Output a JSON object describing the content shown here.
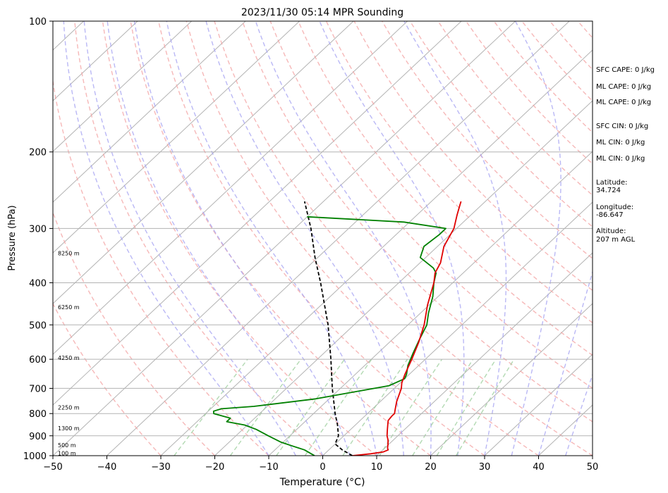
{
  "chart_data": {
    "type": "skew-t",
    "title": "2023/11/30 05:14 MPR Sounding",
    "xlabel": "Temperature (°C)",
    "ylabel": "Pressure (hPa)",
    "xlim": [
      -50,
      50
    ],
    "ylim": [
      1000,
      100
    ],
    "y_scale": "log",
    "x_ticks": [
      -50,
      -40,
      -30,
      -20,
      -10,
      0,
      10,
      20,
      30,
      40,
      50
    ],
    "y_ticks": [
      1000,
      900,
      800,
      700,
      600,
      500,
      400,
      300,
      200,
      100
    ],
    "grid": "horizontal",
    "temperature_color": "#e00000",
    "dewpoint_color": "#008000",
    "parcel_color": "#000000",
    "temperature": [
      [
        1000,
        5.5
      ],
      [
        990,
        8.5
      ],
      [
        980,
        10.5
      ],
      [
        970,
        11.0
      ],
      [
        960,
        10.5
      ],
      [
        940,
        9.8
      ],
      [
        920,
        9.0
      ],
      [
        900,
        8.0
      ],
      [
        870,
        6.8
      ],
      [
        850,
        6.0
      ],
      [
        830,
        5.2
      ],
      [
        810,
        5.0
      ],
      [
        800,
        5.0
      ],
      [
        780,
        4.2
      ],
      [
        750,
        3.0
      ],
      [
        700,
        1.3
      ],
      [
        680,
        0.3
      ],
      [
        650,
        -0.8
      ],
      [
        600,
        -2.5
      ],
      [
        550,
        -4.5
      ],
      [
        500,
        -7.0
      ],
      [
        450,
        -10.3
      ],
      [
        400,
        -13.5
      ],
      [
        380,
        -15.2
      ],
      [
        360,
        -16.2
      ],
      [
        330,
        -18.8
      ],
      [
        300,
        -20.5
      ],
      [
        280,
        -22.5
      ],
      [
        265,
        -24.0
      ],
      [
        260,
        -24.5
      ]
    ],
    "dewpoint": [
      [
        1000,
        -1.5
      ],
      [
        990,
        -2.5
      ],
      [
        970,
        -4.5
      ],
      [
        950,
        -7.5
      ],
      [
        930,
        -10.5
      ],
      [
        900,
        -14.0
      ],
      [
        870,
        -17.5
      ],
      [
        850,
        -20.5
      ],
      [
        835,
        -24.5
      ],
      [
        820,
        -24.5
      ],
      [
        810,
        -26.5
      ],
      [
        800,
        -28.5
      ],
      [
        790,
        -29.0
      ],
      [
        780,
        -28.0
      ],
      [
        770,
        -22.5
      ],
      [
        740,
        -12.5
      ],
      [
        710,
        -6.0
      ],
      [
        690,
        -1.5
      ],
      [
        665,
        0.0
      ],
      [
        650,
        -0.5
      ],
      [
        620,
        -2.0
      ],
      [
        580,
        -3.5
      ],
      [
        540,
        -5.0
      ],
      [
        500,
        -6.5
      ],
      [
        470,
        -8.5
      ],
      [
        430,
        -11.0
      ],
      [
        400,
        -13.5
      ],
      [
        380,
        -15.0
      ],
      [
        370,
        -16.5
      ],
      [
        350,
        -21.0
      ],
      [
        330,
        -22.5
      ],
      [
        310,
        -22.0
      ],
      [
        300,
        -22.0
      ],
      [
        290,
        -31.0
      ],
      [
        282,
        -50.0
      ]
    ],
    "parcel": [
      [
        1000,
        5.5
      ],
      [
        970,
        2.5
      ],
      [
        940,
        0.0
      ],
      [
        900,
        -1.0
      ],
      [
        850,
        -3.3
      ],
      [
        800,
        -6.0
      ],
      [
        700,
        -11.5
      ],
      [
        600,
        -17.5
      ],
      [
        500,
        -24.8
      ],
      [
        400,
        -34.5
      ],
      [
        350,
        -40.5
      ],
      [
        300,
        -47.0
      ],
      [
        260,
        -53.5
      ]
    ],
    "height_labels": [
      "100 m",
      "500 m",
      "1300 m",
      "2250 m",
      "4250 m",
      "6250 m",
      "8250 m"
    ],
    "height_label_pressures": [
      987,
      945,
      865,
      775,
      595,
      455,
      342
    ],
    "annotations": [
      "SFC CAPE: 0 J/kg",
      "ML CAPE: 0 J/kg",
      "ML CAPE: 0 J/kg",
      "SFC CIN: 0 J/kg",
      "ML CIN: 0 J/kg",
      "ML CIN: 0 J/kg",
      "Latitude:",
      "34.724",
      "Longitude:",
      "-86.647",
      "Altitude:",
      "207 m AGL"
    ]
  }
}
